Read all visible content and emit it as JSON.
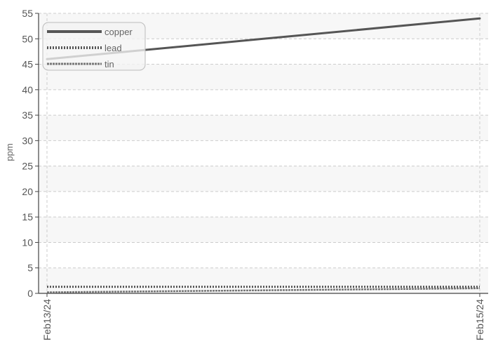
{
  "chart_data": {
    "type": "line",
    "title": "",
    "xlabel": "",
    "ylabel": "ppm",
    "x": [
      "Feb13/24",
      "Feb15/24"
    ],
    "ylim": [
      0,
      55
    ],
    "yticks": [
      0,
      5,
      10,
      15,
      20,
      25,
      30,
      35,
      40,
      45,
      50,
      55
    ],
    "grid": true,
    "legend_position": "top-left",
    "series": [
      {
        "name": "copper",
        "values": [
          46,
          54
        ],
        "color": "#555555",
        "style": "solid"
      },
      {
        "name": "lead",
        "values": [
          1.3,
          1.3
        ],
        "color": "#555555",
        "style": "dotted"
      },
      {
        "name": "tin",
        "values": [
          0.2,
          1.0
        ],
        "color": "#777777",
        "style": "dashed"
      }
    ]
  }
}
